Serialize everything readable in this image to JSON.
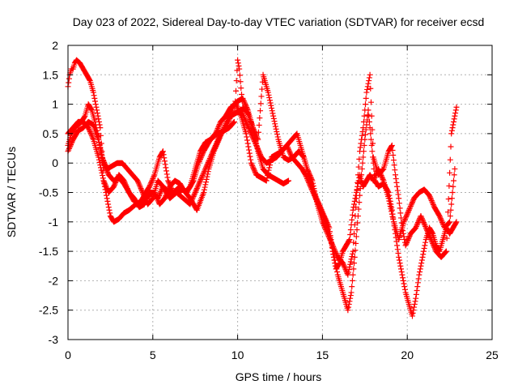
{
  "chart_data": {
    "type": "scatter",
    "title": "Day 023 of 2022, Sidereal Day-to-day VTEC variation (SDTVAR) for receiver ecsd",
    "xlabel": "GPS time / hours",
    "ylabel": "SDTVAR / TECUs",
    "xlim": [
      0,
      25
    ],
    "ylim": [
      -3,
      2
    ],
    "x_ticks": [
      "0",
      "5",
      "10",
      "15",
      "20",
      "25"
    ],
    "y_ticks": [
      "-3",
      "-2.5",
      "-2",
      "-1.5",
      "-1",
      "-0.5",
      "0",
      "0.5",
      "1",
      "1.5",
      "2"
    ],
    "grid": true,
    "marker": "+",
    "color": "#ff0000",
    "series": [
      {
        "values": [
          [
            0.0,
            1.3
          ],
          [
            0.1,
            1.5
          ],
          [
            0.2,
            1.6
          ],
          [
            0.3,
            1.6
          ],
          [
            0.4,
            1.7
          ],
          [
            0.5,
            1.75
          ],
          [
            0.7,
            1.7
          ],
          [
            0.9,
            1.6
          ],
          [
            1.1,
            1.5
          ],
          [
            1.3,
            1.4
          ],
          [
            1.5,
            1.2
          ],
          [
            1.7,
            0.9
          ],
          [
            1.9,
            0.6
          ],
          [
            2.0,
            0.2
          ],
          [
            2.1,
            -0.3
          ],
          [
            2.3,
            -0.6
          ],
          [
            2.5,
            -0.9
          ],
          [
            2.7,
            -1.0
          ],
          [
            3.0,
            -0.95
          ],
          [
            3.3,
            -0.85
          ],
          [
            3.6,
            -0.8
          ],
          [
            4.0,
            -0.7
          ],
          [
            4.3,
            -0.65
          ],
          [
            4.6,
            -0.6
          ],
          [
            5.0,
            -0.5
          ],
          [
            5.3,
            -0.6
          ],
          [
            5.6,
            -0.4
          ],
          [
            6.0,
            -0.5
          ],
          [
            6.4,
            -0.5
          ],
          [
            6.8,
            -0.6
          ],
          [
            7.2,
            -0.7
          ],
          [
            7.5,
            -0.5
          ],
          [
            7.8,
            -0.3
          ],
          [
            8.1,
            -0.1
          ],
          [
            8.4,
            0.1
          ],
          [
            8.7,
            0.3
          ],
          [
            9.0,
            0.5
          ],
          [
            9.3,
            0.6
          ],
          [
            9.6,
            0.8
          ],
          [
            9.9,
            0.85
          ],
          [
            10.2,
            0.9
          ],
          [
            10.5,
            0.7
          ],
          [
            10.8,
            0.5
          ],
          [
            11.1,
            0.3
          ],
          [
            11.4,
            0.1
          ],
          [
            11.7,
            0.0
          ],
          [
            12.0,
            0.05
          ],
          [
            12.3,
            0.1
          ],
          [
            12.6,
            0.2
          ],
          [
            12.9,
            0.3
          ],
          [
            13.2,
            0.1
          ],
          [
            13.5,
            0.0
          ],
          [
            13.8,
            -0.1
          ],
          [
            14.0,
            -0.2
          ],
          [
            14.3,
            -0.4
          ],
          [
            14.6,
            -0.6
          ],
          [
            14.9,
            -0.8
          ],
          [
            15.2,
            -1.0
          ],
          [
            15.5,
            -1.3
          ],
          [
            15.7,
            -1.6
          ],
          [
            15.9,
            -1.9
          ],
          [
            16.1,
            -2.1
          ],
          [
            16.3,
            -2.3
          ],
          [
            16.5,
            -2.5
          ],
          [
            16.7,
            -2.2
          ],
          [
            16.9,
            -1.6
          ],
          [
            17.1,
            -0.9
          ],
          [
            17.3,
            -0.2
          ],
          [
            17.5,
            0.4
          ],
          [
            17.7,
            0.9
          ],
          [
            17.9,
            0.3
          ],
          [
            18.1,
            -0.3
          ],
          [
            18.3,
            -0.4
          ],
          [
            18.6,
            -0.35
          ],
          [
            18.9,
            -0.5
          ],
          [
            19.1,
            -0.8
          ],
          [
            19.3,
            -1.2
          ],
          [
            19.5,
            -1.6
          ],
          [
            19.7,
            -1.9
          ],
          [
            19.9,
            -2.2
          ],
          [
            20.1,
            -2.4
          ],
          [
            20.3,
            -2.6
          ],
          [
            20.5,
            -2.3
          ],
          [
            20.7,
            -1.9
          ],
          [
            20.9,
            -1.6
          ],
          [
            21.1,
            -1.3
          ],
          [
            21.3,
            -1.1
          ],
          [
            21.5,
            -1.2
          ],
          [
            21.7,
            -1.4
          ],
          [
            21.9,
            -1.5
          ],
          [
            22.1,
            -1.3
          ],
          [
            22.3,
            -1.1
          ],
          [
            22.5,
            -1.2
          ],
          [
            22.7,
            -1.1
          ],
          [
            22.9,
            -1.0
          ]
        ]
      },
      {
        "values": [
          [
            0.0,
            0.3
          ],
          [
            0.2,
            0.5
          ],
          [
            0.4,
            0.6
          ],
          [
            0.6,
            0.65
          ],
          [
            0.8,
            0.7
          ],
          [
            1.0,
            0.8
          ],
          [
            1.2,
            1.0
          ],
          [
            1.4,
            0.9
          ],
          [
            1.6,
            0.7
          ],
          [
            1.8,
            0.4
          ],
          [
            2.0,
            0.1
          ],
          [
            2.3,
            -0.1
          ],
          [
            2.6,
            -0.05
          ],
          [
            2.9,
            0.0
          ],
          [
            3.2,
            0.0
          ],
          [
            3.5,
            -0.1
          ],
          [
            3.8,
            -0.2
          ],
          [
            4.1,
            -0.3
          ],
          [
            4.4,
            -0.5
          ],
          [
            4.7,
            -0.7
          ],
          [
            5.0,
            -0.6
          ],
          [
            5.3,
            -0.3
          ],
          [
            5.6,
            -0.4
          ],
          [
            6.0,
            -0.6
          ],
          [
            6.4,
            -0.5
          ],
          [
            6.8,
            -0.45
          ],
          [
            7.2,
            -0.6
          ],
          [
            7.6,
            -0.8
          ],
          [
            8.0,
            -0.5
          ],
          [
            8.3,
            -0.1
          ],
          [
            8.6,
            0.2
          ],
          [
            8.9,
            0.4
          ],
          [
            9.2,
            0.6
          ],
          [
            9.5,
            0.8
          ],
          [
            9.8,
            1.0
          ],
          [
            10.0,
            1.05
          ],
          [
            10.3,
            1.1
          ],
          [
            10.6,
            0.9
          ],
          [
            10.9,
            0.6
          ],
          [
            11.2,
            0.2
          ],
          [
            11.5,
            -0.1
          ],
          [
            11.8,
            -0.2
          ],
          [
            12.1,
            -0.25
          ],
          [
            12.4,
            -0.3
          ],
          [
            12.7,
            -0.35
          ],
          [
            13.0,
            -0.3
          ]
        ]
      },
      {
        "values": [
          [
            0.0,
            0.2
          ],
          [
            0.3,
            0.4
          ],
          [
            0.6,
            0.55
          ],
          [
            0.9,
            0.6
          ],
          [
            1.2,
            0.7
          ],
          [
            1.5,
            0.65
          ],
          [
            1.8,
            0.4
          ],
          [
            2.1,
            0.0
          ],
          [
            2.4,
            -0.2
          ],
          [
            2.7,
            -0.3
          ],
          [
            3.0,
            -0.25
          ],
          [
            3.3,
            -0.35
          ],
          [
            3.6,
            -0.5
          ],
          [
            3.9,
            -0.65
          ],
          [
            4.2,
            -0.7
          ],
          [
            4.5,
            -0.55
          ],
          [
            4.8,
            -0.4
          ],
          [
            5.1,
            -0.2
          ],
          [
            5.4,
            0.1
          ],
          [
            5.6,
            0.2
          ],
          [
            5.9,
            -0.3
          ],
          [
            6.2,
            -0.5
          ],
          [
            6.6,
            -0.4
          ],
          [
            7.0,
            -0.5
          ],
          [
            7.4,
            -0.3
          ],
          [
            7.7,
            0.0
          ],
          [
            8.0,
            0.2
          ],
          [
            8.4,
            0.4
          ],
          [
            8.8,
            0.5
          ],
          [
            9.2,
            0.55
          ],
          [
            9.5,
            0.6
          ],
          [
            9.8,
            0.7
          ],
          [
            10.0,
            1.75
          ],
          [
            10.1,
            1.6
          ],
          [
            10.3,
            0.95
          ],
          [
            10.6,
            0.85
          ],
          [
            10.9,
            0.6
          ],
          [
            11.2,
            0.4
          ],
          [
            11.5,
            1.5
          ],
          [
            11.8,
            1.2
          ],
          [
            12.1,
            0.8
          ],
          [
            12.4,
            0.4
          ],
          [
            12.7,
            0.1
          ],
          [
            13.0,
            0.05
          ],
          [
            13.3,
            0.1
          ],
          [
            13.6,
            0.2
          ],
          [
            13.9,
            0.1
          ],
          [
            14.2,
            -0.2
          ],
          [
            14.5,
            -0.5
          ],
          [
            14.8,
            -0.7
          ],
          [
            15.1,
            -0.9
          ],
          [
            15.4,
            -1.1
          ],
          [
            15.6,
            -1.5
          ],
          [
            15.8,
            -1.8
          ],
          [
            16.0,
            -1.7
          ],
          [
            16.2,
            -1.5
          ],
          [
            16.4,
            -1.4
          ],
          [
            16.6,
            -1.3
          ],
          [
            16.8,
            -0.8
          ],
          [
            17.0,
            -0.5
          ],
          [
            17.2,
            -0.2
          ],
          [
            17.4,
            -0.4
          ],
          [
            17.6,
            -0.3
          ],
          [
            17.8,
            -0.2
          ],
          [
            18.0,
            -0.3
          ],
          [
            18.3,
            -0.1
          ],
          [
            18.6,
            -0.3
          ],
          [
            18.9,
            -0.6
          ],
          [
            19.2,
            -1.0
          ],
          [
            19.5,
            -1.3
          ],
          [
            19.8,
            -1.0
          ],
          [
            20.1,
            -0.8
          ],
          [
            20.4,
            -0.6
          ],
          [
            20.7,
            -0.5
          ],
          [
            21.0,
            -0.45
          ],
          [
            21.3,
            -0.55
          ],
          [
            21.6,
            -0.75
          ],
          [
            21.9,
            -0.9
          ],
          [
            22.2,
            -1.1
          ],
          [
            22.5,
            -1.0
          ],
          [
            22.8,
            -0.1
          ]
        ]
      },
      {
        "values": [
          [
            0.0,
            0.5
          ],
          [
            0.3,
            0.6
          ],
          [
            0.6,
            0.7
          ],
          [
            0.9,
            0.7
          ],
          [
            1.2,
            0.6
          ],
          [
            1.5,
            0.4
          ],
          [
            1.8,
            0.1
          ],
          [
            2.1,
            -0.3
          ],
          [
            2.4,
            -0.5
          ],
          [
            2.7,
            -0.4
          ],
          [
            3.0,
            -0.2
          ],
          [
            3.3,
            -0.3
          ],
          [
            3.6,
            -0.5
          ],
          [
            3.9,
            -0.6
          ],
          [
            4.2,
            -0.75
          ],
          [
            4.5,
            -0.7
          ],
          [
            4.8,
            -0.5
          ],
          [
            5.1,
            -0.5
          ],
          [
            5.4,
            -0.7
          ],
          [
            5.7,
            -0.6
          ],
          [
            6.0,
            -0.4
          ],
          [
            6.3,
            -0.3
          ],
          [
            6.6,
            -0.35
          ],
          [
            6.9,
            -0.5
          ],
          [
            7.2,
            -0.4
          ],
          [
            7.5,
            -0.1
          ],
          [
            7.8,
            0.2
          ],
          [
            8.1,
            0.35
          ],
          [
            8.4,
            0.4
          ],
          [
            8.7,
            0.5
          ],
          [
            9.0,
            0.7
          ],
          [
            9.3,
            0.8
          ],
          [
            9.6,
            0.95
          ],
          [
            9.9,
            1.0
          ],
          [
            10.2,
            0.8
          ],
          [
            10.5,
            0.5
          ],
          [
            10.8,
            0.0
          ],
          [
            11.1,
            -0.2
          ],
          [
            11.4,
            -0.25
          ],
          [
            11.7,
            -0.3
          ],
          [
            12.0,
            0.1
          ],
          [
            12.3,
            0.15
          ],
          [
            12.6,
            0.2
          ],
          [
            12.9,
            0.3
          ],
          [
            13.2,
            0.4
          ],
          [
            13.5,
            0.5
          ],
          [
            13.8,
            0.2
          ],
          [
            14.1,
            -0.1
          ],
          [
            14.4,
            -0.3
          ],
          [
            14.7,
            -0.7
          ],
          [
            15.0,
            -1.0
          ],
          [
            15.3,
            -1.2
          ],
          [
            15.6,
            -1.4
          ],
          [
            15.9,
            -1.6
          ],
          [
            16.2,
            -1.7
          ],
          [
            16.5,
            -1.9
          ],
          [
            16.8,
            -1.5
          ],
          [
            17.0,
            -0.6
          ],
          [
            17.2,
            0.2
          ],
          [
            17.4,
            0.6
          ],
          [
            17.6,
            1.2
          ],
          [
            17.8,
            1.5
          ],
          [
            18.0,
            0.1
          ],
          [
            18.3,
            -0.2
          ],
          [
            18.6,
            -0.1
          ],
          [
            18.9,
            0.2
          ],
          [
            19.1,
            0.3
          ],
          [
            19.3,
            -0.2
          ],
          [
            19.5,
            -0.6
          ],
          [
            19.7,
            -1.1
          ],
          [
            19.9,
            -1.4
          ],
          [
            20.2,
            -1.2
          ],
          [
            20.5,
            -1.1
          ],
          [
            20.8,
            -0.9
          ],
          [
            21.1,
            -1.1
          ],
          [
            21.4,
            -1.3
          ],
          [
            21.7,
            -1.5
          ],
          [
            22.0,
            -1.6
          ],
          [
            22.3,
            -1.5
          ],
          [
            22.6,
            0.5
          ],
          [
            22.9,
            0.95
          ]
        ]
      }
    ]
  }
}
